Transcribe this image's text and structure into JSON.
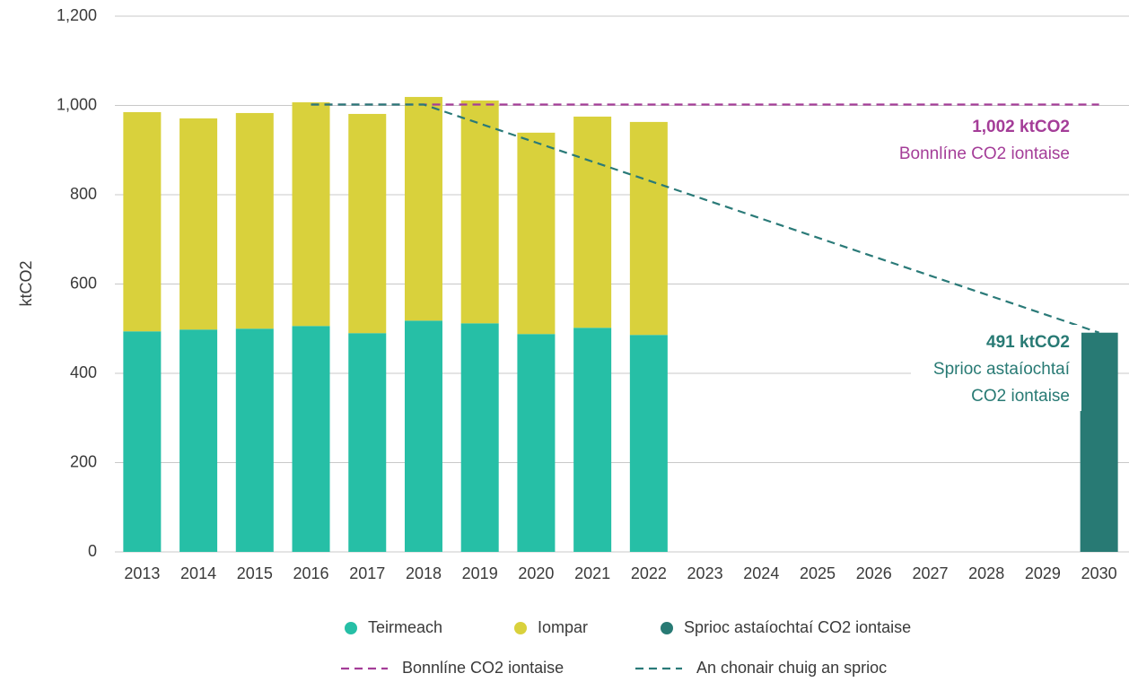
{
  "chart_data": {
    "type": "bar",
    "stacked": true,
    "y_label": "ktCO2",
    "categories": [
      "2013",
      "2014",
      "2015",
      "2016",
      "2017",
      "2018",
      "2019",
      "2020",
      "2021",
      "2022",
      "2023",
      "2024",
      "2025",
      "2026",
      "2027",
      "2028",
      "2029",
      "2030"
    ],
    "series": [
      {
        "name": "Teirmeach",
        "type": "bar",
        "color": "#26bfa6",
        "values": [
          494,
          498,
          500,
          506,
          490,
          518,
          512,
          488,
          502,
          486,
          null,
          null,
          null,
          null,
          null,
          null,
          null,
          null
        ]
      },
      {
        "name": "Iompar",
        "type": "bar",
        "color": "#d9d13c",
        "values": [
          491,
          473,
          483,
          501,
          491,
          501,
          499,
          451,
          473,
          477,
          null,
          null,
          null,
          null,
          null,
          null,
          null,
          null
        ]
      },
      {
        "name": "Sprioc astaíochtaí CO2 iontaise",
        "type": "bar",
        "color": "#287a74",
        "values": [
          null,
          null,
          null,
          null,
          null,
          null,
          null,
          null,
          null,
          null,
          null,
          null,
          null,
          null,
          null,
          null,
          null,
          491
        ]
      },
      {
        "name": "Bonnlíne CO2 iontaise",
        "type": "line",
        "dashed": true,
        "color": "#a43d98",
        "values": [
          null,
          null,
          null,
          1002,
          1002,
          1002,
          1002,
          1002,
          1002,
          1002,
          1002,
          1002,
          1002,
          1002,
          1002,
          1002,
          1002,
          1002
        ]
      },
      {
        "name": "An chonair chuig an sprioc",
        "type": "line",
        "dashed": true,
        "color": "#2a7a78",
        "values": [
          null,
          null,
          null,
          1002,
          1002,
          1002,
          959.4,
          916.8,
          874.3,
          831.7,
          789.1,
          746.5,
          703.9,
          661.3,
          618.8,
          576.2,
          533.6,
          491
        ]
      }
    ],
    "annotations": [
      {
        "lines": [
          "1,002 ktCO2",
          "Bonnlíne CO2 iontaise"
        ],
        "color": "#a43d98"
      },
      {
        "lines": [
          "491 ktCO2",
          "Sprioc astaíochtaí",
          "CO2 iontaise"
        ],
        "color": "#287a74"
      }
    ],
    "ylim": [
      0,
      1200
    ],
    "yticks": [
      0,
      200,
      400,
      600,
      800,
      {
        "value": 1000,
        "label": "1,000"
      },
      {
        "value": 1200,
        "label": "1,200"
      }
    ],
    "grid": true
  }
}
